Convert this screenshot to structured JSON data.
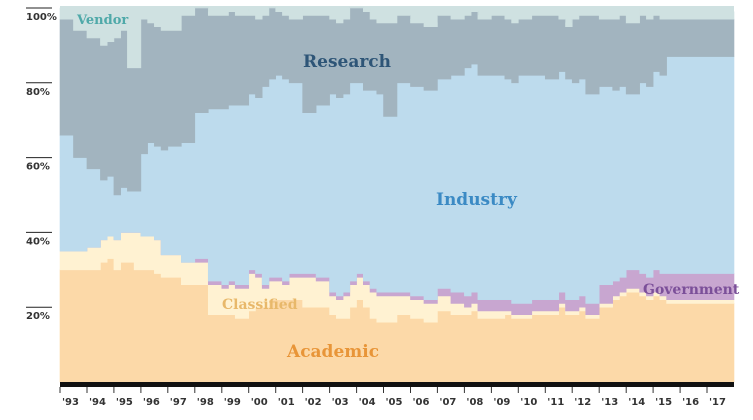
{
  "chart_data": {
    "type": "area",
    "stacked": true,
    "step": true,
    "normalized_percent": true,
    "ylim": [
      0,
      100
    ],
    "yticks": [
      {
        "value": 20,
        "label": "20%"
      },
      {
        "value": 40,
        "label": "40%"
      },
      {
        "value": 60,
        "label": "60%"
      },
      {
        "value": 80,
        "label": "80%"
      },
      {
        "value": 100,
        "label": "100%"
      }
    ],
    "x_start": 1993.0,
    "x_end": 2017.75,
    "x_step": 0.25,
    "x_ticks": [
      {
        "value": 1993,
        "label": "'93"
      },
      {
        "value": 1994,
        "label": "'94"
      },
      {
        "value": 1995,
        "label": "'95"
      },
      {
        "value": 1996,
        "label": "'96"
      },
      {
        "value": 1997,
        "label": "'97"
      },
      {
        "value": 1998,
        "label": "'98"
      },
      {
        "value": 1999,
        "label": "'99"
      },
      {
        "value": 2000,
        "label": "'00"
      },
      {
        "value": 2001,
        "label": "'01"
      },
      {
        "value": 2002,
        "label": "'02"
      },
      {
        "value": 2003,
        "label": "'03"
      },
      {
        "value": 2004,
        "label": "'04"
      },
      {
        "value": 2005,
        "label": "'05"
      },
      {
        "value": 2006,
        "label": "'06"
      },
      {
        "value": 2007,
        "label": "'07"
      },
      {
        "value": 2008,
        "label": "'08"
      },
      {
        "value": 2009,
        "label": "'09"
      },
      {
        "value": 2010,
        "label": "'10"
      },
      {
        "value": 2011,
        "label": "'11"
      },
      {
        "value": 2012,
        "label": "'12"
      },
      {
        "value": 2013,
        "label": "'13"
      },
      {
        "value": 2014,
        "label": "'14"
      },
      {
        "value": 2015,
        "label": "'15"
      },
      {
        "value": 2016,
        "label": "'16"
      },
      {
        "value": 2017,
        "label": "'17"
      }
    ],
    "series": [
      {
        "name": "Academic",
        "color": "#fcd9a8",
        "values": [
          30,
          30,
          30,
          30,
          30,
          30,
          32,
          33,
          30,
          32,
          32,
          30,
          30,
          30,
          29,
          28,
          28,
          28,
          26,
          26,
          26,
          26,
          18,
          18,
          18,
          18,
          17,
          17,
          19,
          20,
          20,
          22,
          22,
          22,
          22,
          22,
          20,
          20,
          20,
          20,
          18,
          17,
          17,
          20,
          22,
          20,
          17,
          16,
          16,
          16,
          18,
          18,
          17,
          17,
          16,
          16,
          19,
          19,
          18,
          18,
          18,
          19,
          17,
          17,
          17,
          17,
          18,
          17,
          17,
          17,
          18,
          18,
          18,
          18,
          20,
          18,
          18,
          19,
          17,
          17,
          20,
          20,
          22,
          23,
          24,
          24,
          23,
          22,
          23,
          22,
          21,
          21,
          21,
          21,
          21,
          21,
          21,
          21,
          21,
          21
        ]
      },
      {
        "name": "Classified",
        "color": "#fff2d2",
        "values": [
          5,
          5,
          5,
          5,
          6,
          6,
          6,
          6,
          8,
          8,
          8,
          10,
          9,
          9,
          9,
          6,
          6,
          6,
          6,
          6,
          6,
          6,
          8,
          8,
          7,
          8,
          8,
          8,
          10,
          8,
          5,
          5,
          5,
          4,
          6,
          6,
          8,
          8,
          7,
          7,
          5,
          5,
          6,
          6,
          6,
          6,
          7,
          7,
          7,
          7,
          5,
          5,
          5,
          5,
          5,
          5,
          4,
          4,
          3,
          3,
          2,
          2,
          2,
          2,
          2,
          2,
          1,
          1,
          1,
          1,
          1,
          1,
          1,
          1,
          1,
          1,
          1,
          1,
          1,
          1,
          1,
          1,
          1,
          1,
          1,
          1,
          1,
          1,
          1,
          1,
          1,
          1,
          1,
          1,
          1,
          1,
          1,
          1,
          1,
          1
        ]
      },
      {
        "name": "Government",
        "color": "#c8a6d0",
        "values": [
          0,
          0,
          0,
          0,
          0,
          0,
          0,
          0,
          0,
          0,
          0,
          0,
          0,
          0,
          0,
          0,
          0,
          0,
          0,
          0,
          1,
          1,
          1,
          1,
          1,
          1,
          1,
          1,
          1,
          1,
          1,
          1,
          1,
          1,
          1,
          1,
          1,
          1,
          1,
          1,
          1,
          1,
          1,
          1,
          1,
          1,
          1,
          1,
          1,
          1,
          1,
          1,
          1,
          1,
          1,
          1,
          2,
          2,
          3,
          3,
          3,
          3,
          3,
          3,
          3,
          3,
          3,
          3,
          3,
          3,
          3,
          3,
          3,
          3,
          3,
          3,
          3,
          3,
          3,
          3,
          5,
          5,
          4,
          4,
          5,
          5,
          5,
          5,
          6,
          6,
          7,
          7,
          7,
          7,
          7,
          7,
          7,
          7,
          7,
          7
        ]
      },
      {
        "name": "Industry",
        "color": "#bddbed",
        "values": [
          31,
          31,
          25,
          25,
          21,
          21,
          16,
          16,
          12,
          12,
          11,
          11,
          22,
          25,
          25,
          28,
          29,
          29,
          32,
          32,
          39,
          39,
          46,
          46,
          47,
          47,
          48,
          48,
          47,
          47,
          53,
          53,
          54,
          54,
          51,
          51,
          43,
          43,
          46,
          46,
          53,
          53,
          53,
          53,
          51,
          51,
          53,
          53,
          47,
          47,
          56,
          56,
          56,
          56,
          56,
          56,
          56,
          56,
          58,
          58,
          61,
          61,
          60,
          60,
          60,
          60,
          59,
          59,
          61,
          61,
          60,
          60,
          59,
          59,
          59,
          59,
          58,
          58,
          56,
          56,
          53,
          53,
          51,
          51,
          47,
          47,
          51,
          51,
          53,
          53,
          58,
          58,
          58,
          58,
          58,
          58,
          58,
          58,
          58,
          58
        ]
      },
      {
        "name": "Research",
        "color": "#a2b4bf",
        "values": [
          31,
          31,
          34,
          34,
          35,
          35,
          36,
          36,
          42,
          42,
          33,
          33,
          36,
          32,
          32,
          32,
          31,
          31,
          34,
          34,
          32,
          32,
          25,
          25,
          25,
          25,
          24,
          24,
          21,
          21,
          19,
          19,
          17,
          17,
          17,
          17,
          26,
          26,
          24,
          24,
          20,
          20,
          20,
          20,
          21,
          21,
          19,
          19,
          25,
          25,
          18,
          18,
          17,
          17,
          17,
          17,
          17,
          17,
          15,
          15,
          14,
          14,
          15,
          15,
          16,
          16,
          16,
          16,
          15,
          15,
          16,
          16,
          17,
          17,
          14,
          14,
          17,
          17,
          21,
          21,
          18,
          18,
          19,
          19,
          19,
          19,
          18,
          18,
          15,
          15,
          10,
          10,
          10,
          10,
          10,
          10,
          10,
          10,
          10,
          10
        ]
      },
      {
        "name": "Vendor",
        "color": "#cfe1e1",
        "values": [
          3,
          3,
          6,
          6,
          8,
          8,
          10,
          10,
          8,
          8,
          13,
          13,
          3,
          3,
          3,
          3,
          3,
          3,
          1,
          1,
          1,
          1,
          1,
          1,
          1,
          1,
          1,
          1,
          2,
          2,
          2,
          2,
          2,
          2,
          2,
          2,
          2,
          2,
          2,
          2,
          3,
          3,
          3,
          3,
          3,
          3,
          2,
          2,
          3,
          3,
          1,
          1,
          1,
          1,
          1,
          1,
          1,
          1,
          1,
          1,
          1,
          1,
          1,
          1,
          1,
          1,
          1,
          1,
          1,
          1,
          1,
          1,
          1,
          1,
          1,
          1,
          1,
          1,
          1,
          1,
          2,
          2,
          2,
          2,
          2,
          2,
          2,
          2,
          2,
          2,
          2,
          2,
          2,
          2,
          2,
          2,
          2,
          2,
          2,
          2
        ]
      }
    ]
  },
  "labels": {
    "vendor": {
      "text": "Vendor",
      "color": "#4fa9a9"
    },
    "research": {
      "text": "Research",
      "color": "#2e5577"
    },
    "industry": {
      "text": "Industry",
      "color": "#3b8ac4"
    },
    "classified": {
      "text": "Classified",
      "color": "#e8b86a"
    },
    "government": {
      "text": "Government",
      "color": "#7b4f99"
    },
    "academic": {
      "text": "Academic",
      "color": "#e89538"
    }
  }
}
